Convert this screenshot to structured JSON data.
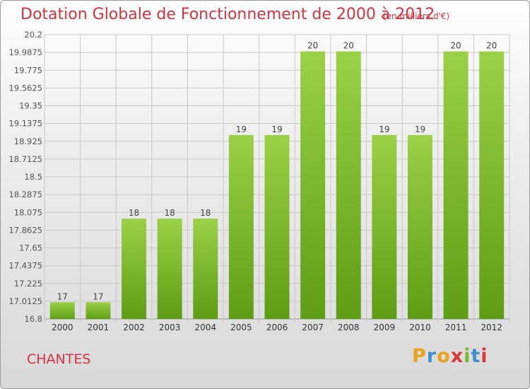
{
  "header": {
    "title": "Dotation Globale de Fonctionnement de 2000 à 2012",
    "subtitle": "(en milliers d'€)"
  },
  "footer": {
    "commune": "CHANTES",
    "logo": "Proxiti"
  },
  "colors": {
    "title": "#d2333f",
    "bar_top": "#9bd146",
    "bar_bottom": "#5e9d14",
    "grid": "#c8c8c8",
    "axis": "#9a9a9a"
  },
  "chart_data": {
    "type": "bar",
    "title": "Dotation Globale de Fonctionnement de 2000 à 2012",
    "subtitle": "(en milliers d'€)",
    "xlabel": "",
    "ylabel": "",
    "categories": [
      "2000",
      "2001",
      "2002",
      "2003",
      "2004",
      "2005",
      "2006",
      "2007",
      "2008",
      "2009",
      "2010",
      "2011",
      "2012"
    ],
    "values": [
      17,
      17,
      18,
      18,
      18,
      19,
      19,
      20,
      20,
      19,
      19,
      20,
      20
    ],
    "value_labels": [
      "17",
      "17",
      "18",
      "18",
      "18",
      "19",
      "19",
      "20",
      "20",
      "19",
      "19",
      "20",
      "20"
    ],
    "ylim": [
      16.8,
      20.2
    ],
    "yticks": [
      "16.8",
      "17.0125",
      "17.225",
      "17.4375",
      "17.65",
      "17.8625",
      "18.075",
      "18.2875",
      "18.5",
      "18.7125",
      "18.925",
      "19.1375",
      "19.35",
      "19.5625",
      "19.775",
      "19.9875",
      "20.2"
    ],
    "grid": true,
    "legend": "none"
  }
}
